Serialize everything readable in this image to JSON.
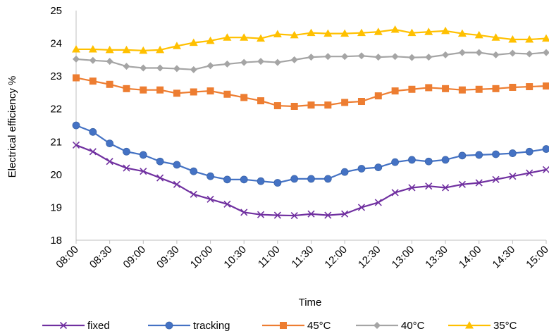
{
  "chart_data": {
    "type": "line",
    "xlabel": "Time",
    "ylabel": "Electrical efficiency %",
    "ylim": [
      18,
      25
    ],
    "yticks": [
      18,
      19,
      20,
      21,
      22,
      23,
      24,
      25
    ],
    "grid": false,
    "legend_position": "bottom",
    "x": [
      "08:00",
      "08:15",
      "08:30",
      "08:45",
      "09:00",
      "09:15",
      "09:30",
      "09:45",
      "10:00",
      "10:15",
      "10:30",
      "10:45",
      "11:00",
      "11:15",
      "11:30",
      "11:45",
      "12:00",
      "12:15",
      "12:30",
      "12:45",
      "13:00",
      "13:15",
      "13:30",
      "13:45",
      "14:00",
      "14:15",
      "14:30",
      "14:45",
      "15:00"
    ],
    "xtick_labels": [
      "08:00",
      "08:30",
      "09:00",
      "09:30",
      "10:00",
      "10:30",
      "11:00",
      "11:30",
      "12:00",
      "12:30",
      "13:00",
      "13:30",
      "14:00",
      "14:30",
      "15:00"
    ],
    "series": [
      {
        "name": "fixed",
        "color": "#7030a0",
        "marker": "x",
        "values": [
          20.9,
          20.7,
          20.4,
          20.2,
          20.1,
          19.9,
          19.7,
          19.4,
          19.25,
          19.1,
          18.85,
          18.78,
          18.76,
          18.75,
          18.8,
          18.76,
          18.8,
          19.0,
          19.15,
          19.45,
          19.6,
          19.65,
          19.6,
          19.7,
          19.75,
          19.85,
          19.95,
          20.05,
          20.15
        ]
      },
      {
        "name": "tracking",
        "color": "#4472c4",
        "marker": "circle",
        "values": [
          21.5,
          21.3,
          20.95,
          20.7,
          20.6,
          20.4,
          20.3,
          20.1,
          19.95,
          19.85,
          19.85,
          19.8,
          19.75,
          19.87,
          19.87,
          19.87,
          20.08,
          20.18,
          20.22,
          20.38,
          20.45,
          20.4,
          20.45,
          20.58,
          20.6,
          20.62,
          20.65,
          20.7,
          20.78
        ]
      },
      {
        "name": "45°C",
        "color": "#ed7d31",
        "marker": "square",
        "values": [
          22.95,
          22.85,
          22.75,
          22.62,
          22.58,
          22.58,
          22.48,
          22.52,
          22.55,
          22.45,
          22.35,
          22.25,
          22.1,
          22.08,
          22.12,
          22.12,
          22.2,
          22.23,
          22.4,
          22.55,
          22.6,
          22.65,
          22.62,
          22.58,
          22.6,
          22.62,
          22.66,
          22.68,
          22.7
        ]
      },
      {
        "name": "40°C",
        "color": "#a5a5a5",
        "marker": "diamond",
        "values": [
          23.52,
          23.48,
          23.45,
          23.3,
          23.25,
          23.25,
          23.23,
          23.2,
          23.32,
          23.37,
          23.42,
          23.45,
          23.42,
          23.5,
          23.58,
          23.6,
          23.6,
          23.62,
          23.58,
          23.6,
          23.57,
          23.58,
          23.65,
          23.72,
          23.72,
          23.65,
          23.7,
          23.68,
          23.72
        ]
      },
      {
        "name": "35°C",
        "color": "#ffc000",
        "marker": "triangle",
        "values": [
          23.82,
          23.82,
          23.8,
          23.8,
          23.78,
          23.8,
          23.92,
          24.02,
          24.08,
          24.18,
          24.18,
          24.15,
          24.28,
          24.25,
          24.32,
          24.3,
          24.3,
          24.32,
          24.35,
          24.42,
          24.32,
          24.35,
          24.38,
          24.3,
          24.25,
          24.18,
          24.12,
          24.12,
          24.15
        ]
      }
    ]
  }
}
